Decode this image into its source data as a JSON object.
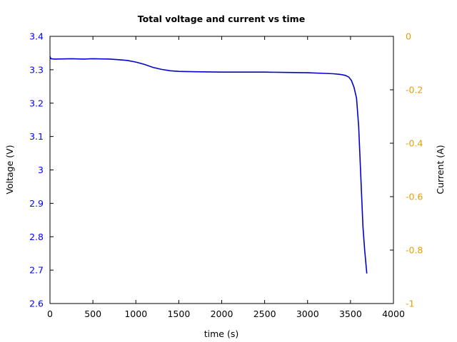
{
  "chart_data": {
    "type": "line",
    "title": "Total voltage and current vs time",
    "xlabel": "time (s)",
    "ylabel": "Voltage (V)",
    "y2label": "Current (A)",
    "xlim": [
      0,
      4000
    ],
    "ylim": [
      2.6,
      3.4
    ],
    "y2lim": [
      -1,
      0
    ],
    "xticks": [
      0,
      500,
      1000,
      1500,
      2000,
      2500,
      3000,
      3500,
      4000
    ],
    "yticks": [
      2.6,
      2.7,
      2.8,
      2.9,
      3,
      3.1,
      3.2,
      3.3,
      3.4
    ],
    "y2ticks": [
      -1,
      -0.8,
      -0.6,
      -0.4,
      -0.2,
      0
    ],
    "colors": {
      "voltage": "#0000cc",
      "left_axis": "#0000ff",
      "right_axis": "#e69f00"
    },
    "series": [
      {
        "axis": "left",
        "x": [
          0,
          10,
          50,
          250,
          400,
          500,
          700,
          800,
          900,
          1000,
          1100,
          1200,
          1300,
          1400,
          1500,
          1700,
          2000,
          2250,
          2500,
          2700,
          3000,
          3200,
          3300,
          3380,
          3440,
          3480,
          3510,
          3540,
          3570,
          3595,
          3620,
          3645,
          3665,
          3690
        ],
        "y": [
          3.34,
          3.333,
          3.332,
          3.333,
          3.332,
          3.333,
          3.332,
          3.33,
          3.328,
          3.323,
          3.316,
          3.307,
          3.301,
          3.297,
          3.295,
          3.294,
          3.293,
          3.293,
          3.293,
          3.292,
          3.291,
          3.289,
          3.288,
          3.286,
          3.283,
          3.278,
          3.268,
          3.248,
          3.215,
          3.13,
          2.98,
          2.83,
          2.76,
          2.69
        ]
      }
    ]
  }
}
